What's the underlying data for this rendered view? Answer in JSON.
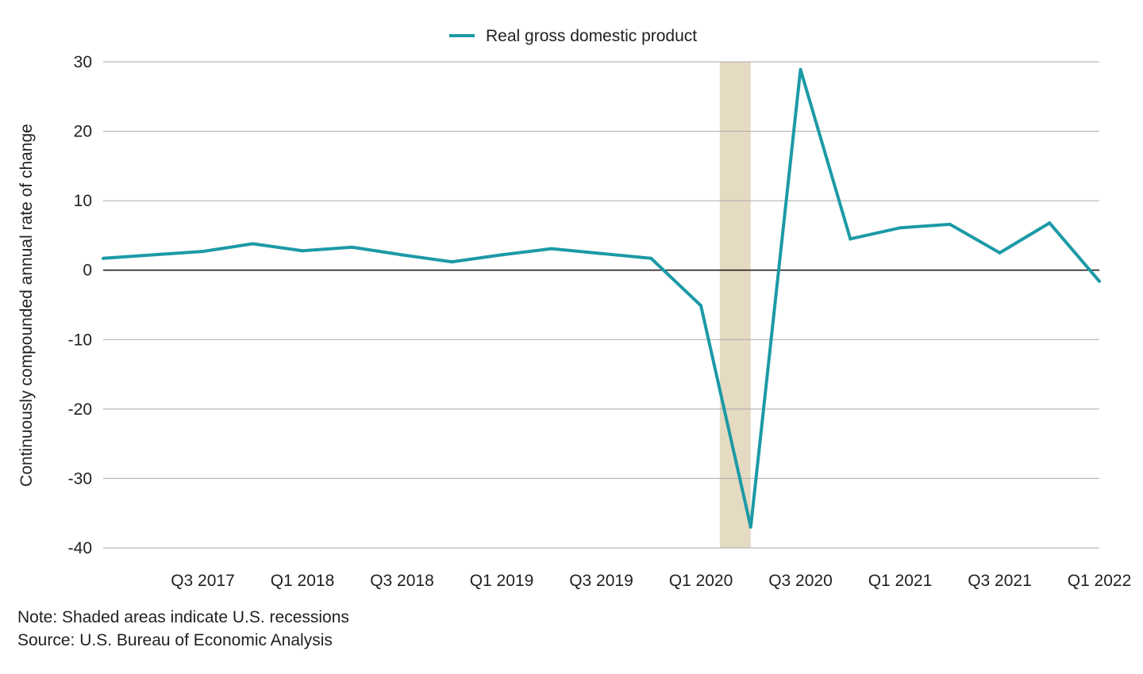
{
  "chart_data": {
    "type": "line",
    "title": "",
    "xlabel": "",
    "ylabel": "Continuously compounded annual rate of change",
    "ylim": [
      -40,
      30
    ],
    "yticks": [
      30,
      20,
      10,
      0,
      -10,
      -20,
      -30,
      -40
    ],
    "grid": true,
    "legend_position": "top-center",
    "x": [
      "Q1 2017",
      "Q2 2017",
      "Q3 2017",
      "Q4 2017",
      "Q1 2018",
      "Q2 2018",
      "Q3 2018",
      "Q4 2018",
      "Q1 2019",
      "Q2 2019",
      "Q3 2019",
      "Q4 2019",
      "Q1 2020",
      "Q2 2020",
      "Q3 2020",
      "Q4 2020",
      "Q1 2021",
      "Q2 2021",
      "Q3 2021",
      "Q4 2021",
      "Q1 2022"
    ],
    "x_tick_labels": [
      "Q3 2017",
      "Q1 2018",
      "Q3 2018",
      "Q1 2019",
      "Q3 2019",
      "Q1 2020",
      "Q3 2020",
      "Q1 2021",
      "Q3 2021",
      "Q1 2022"
    ],
    "series": [
      {
        "name": "Real gross domestic product",
        "color": "#1b9aa6",
        "values": [
          1.7,
          2.2,
          2.7,
          3.8,
          2.8,
          3.3,
          2.2,
          1.2,
          2.2,
          3.1,
          2.4,
          1.7,
          -5.1,
          -37.0,
          28.9,
          4.5,
          6.1,
          6.6,
          2.5,
          6.8,
          -1.6
        ]
      }
    ],
    "shaded_regions": [
      {
        "start": 12.38,
        "end": 13.0,
        "color": "#e5dac2"
      }
    ]
  },
  "footer": {
    "note": "Note: Shaded areas indicate U.S. recessions",
    "source": "Source: U.S. Bureau of Economic Analysis"
  }
}
